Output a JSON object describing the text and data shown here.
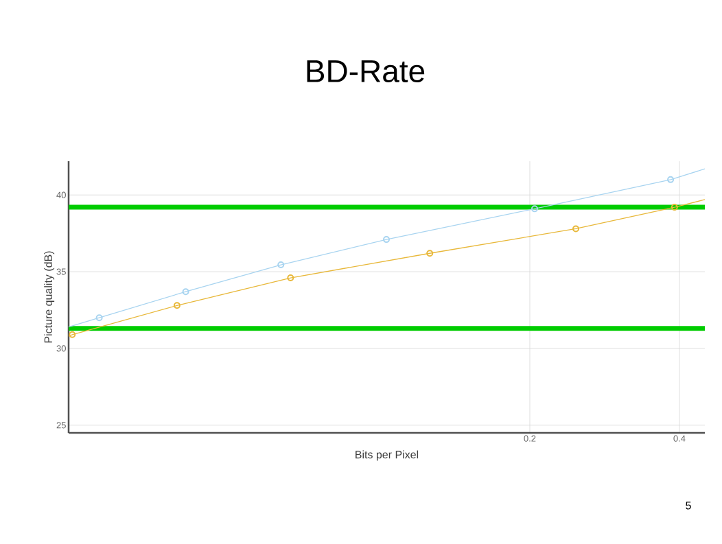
{
  "chart_data": {
    "type": "line",
    "title": "BD-Rate",
    "xlabel": "Bits per Pixel",
    "ylabel": "Picture quality (dB)",
    "log": "x",
    "grid": true,
    "xlim": [
      0.0236,
      0.45
    ],
    "ylim": [
      24.5,
      42.2
    ],
    "xticks": [
      0.2,
      0.4
    ],
    "yticks": [
      25,
      30,
      35,
      40
    ],
    "series": [
      {
        "marker": "none",
        "color": "#a8d4f0",
        "x": [
          0.0236,
          0.0272,
          0.0406,
          0.0631,
          0.1029,
          0.2045,
          0.384,
          0.45
        ],
        "values": [
          31.4,
          32.0,
          33.7,
          35.45,
          37.1,
          39.1,
          41.0,
          41.7
        ]
      },
      {
        "marker": "none",
        "color": "#e8b83a",
        "x": [
          0.0236,
          0.024,
          0.039,
          0.066,
          0.1258,
          0.2475,
          0.391,
          0.45
        ],
        "values": [
          30.8,
          30.9,
          32.8,
          34.6,
          36.2,
          37.8,
          39.2,
          39.7
        ]
      },
      {
        "type": "scatter",
        "marker": "circle",
        "color": "#a8d4f0",
        "x": [
          0.0272,
          0.0406,
          0.0631,
          0.1029,
          0.2045,
          0.384
        ],
        "values": [
          32.0,
          33.7,
          35.45,
          37.1,
          39.1,
          41.0
        ]
      },
      {
        "type": "scatter",
        "marker": "circle",
        "color": "#e8b83a",
        "x": [
          0.024,
          0.039,
          0.066,
          0.1258,
          0.2475,
          0.391
        ],
        "values": [
          30.9,
          32.8,
          34.6,
          36.2,
          37.8,
          39.2
        ]
      }
    ],
    "ref_lines": [
      {
        "axis": "y",
        "value": 39.2,
        "color": "#00cc00"
      },
      {
        "axis": "y",
        "value": 31.3,
        "color": "#00cc00"
      }
    ],
    "annotations": [
      "5"
    ]
  }
}
